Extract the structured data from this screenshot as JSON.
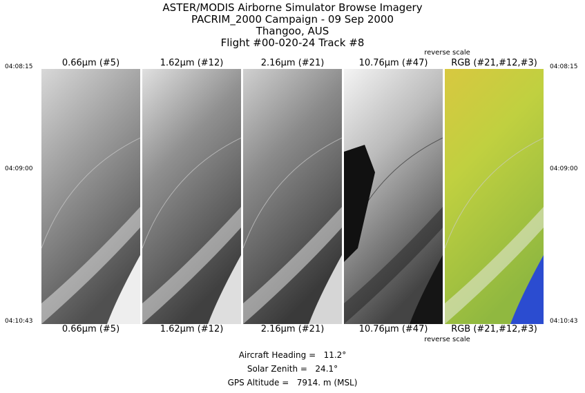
{
  "header": {
    "lines": [
      "ASTER/MODIS Airborne Simulator Browse Imagery",
      "PACRIM_2000 Campaign - 09 Sep 2000",
      "Thangoo, AUS",
      "Flight #00-020-24 Track #8"
    ]
  },
  "panels": [
    {
      "label_top": "0.66μm (#5)",
      "label_bottom": "0.66μm (#5)"
    },
    {
      "label_top": "1.62μm (#12)",
      "label_bottom": "1.62μm (#12)"
    },
    {
      "label_top": "2.16μm (#21)",
      "label_bottom": "2.16μm (#21)"
    },
    {
      "label_top": "10.76μm (#47)",
      "label_bottom": "10.76μm (#47)",
      "note_top": "reverse scale",
      "note_bottom": "reverse scale"
    },
    {
      "label_top": "RGB (#21,#12,#3)",
      "label_bottom": "RGB (#21,#12,#3)"
    }
  ],
  "times": {
    "left": [
      "04:08:15",
      "04:09:00",
      "04:10:43"
    ],
    "right": [
      "04:08:15",
      "04:09:00",
      "04:10:43"
    ]
  },
  "footer": {
    "lines": [
      "Aircraft Heading =   11.2°",
      "Solar Zenith =   24.1°",
      "GPS Altitude =   7914. m (MSL)"
    ]
  }
}
